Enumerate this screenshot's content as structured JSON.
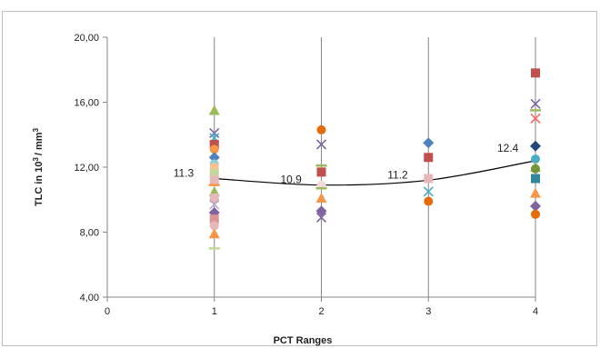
{
  "chart_data": {
    "type": "scatter",
    "title": "",
    "xlabel": "PCT Ranges",
    "ylabel_base": "TLC in 10",
    "ylabel_sup1": "3",
    "ylabel_mid": "/ mm",
    "ylabel_sup2": "3",
    "xlim": [
      0,
      4
    ],
    "ylim": [
      4,
      20
    ],
    "x_ticks": [
      "0",
      "1",
      "2",
      "3",
      "4"
    ],
    "y_ticks": [
      "4,00",
      "8,00",
      "12,00",
      "16,00",
      "20,00"
    ],
    "grid": "vertical",
    "legend": "none",
    "points": [
      {
        "x": 1,
        "y": 15.5,
        "marker": "triangle",
        "color": "#9bbb59"
      },
      {
        "x": 1,
        "y": 14.1,
        "marker": "x",
        "color": "#8064a2"
      },
      {
        "x": 1,
        "y": 13.8,
        "marker": "star",
        "color": "#4bacc6"
      },
      {
        "x": 1,
        "y": 13.4,
        "marker": "square",
        "color": "#c0504d"
      },
      {
        "x": 1,
        "y": 13.1,
        "marker": "circle",
        "color": "#f79646"
      },
      {
        "x": 1,
        "y": 12.6,
        "marker": "diamond",
        "color": "#4f81bd"
      },
      {
        "x": 1,
        "y": 12.2,
        "marker": "circle",
        "color": "#93cddd"
      },
      {
        "x": 1,
        "y": 12.0,
        "marker": "circle",
        "color": "#fac090"
      },
      {
        "x": 1,
        "y": 11.6,
        "marker": "square",
        "color": "#c3d69b"
      },
      {
        "x": 1,
        "y": 11.2,
        "marker": "square",
        "color": "#e6b9b8"
      },
      {
        "x": 1,
        "y": 10.9,
        "marker": "dash",
        "color": "#f79646"
      },
      {
        "x": 1,
        "y": 10.5,
        "marker": "triangle",
        "color": "#9bbb59"
      },
      {
        "x": 1,
        "y": 10.1,
        "marker": "square",
        "color": "#e6b9b8"
      },
      {
        "x": 1,
        "y": 9.7,
        "marker": "x",
        "color": "#b7a9d1"
      },
      {
        "x": 1,
        "y": 9.2,
        "marker": "diamond",
        "color": "#8064a2"
      },
      {
        "x": 1,
        "y": 8.8,
        "marker": "square",
        "color": "#d99694"
      },
      {
        "x": 1,
        "y": 8.4,
        "marker": "circle",
        "color": "#e6b9b8"
      },
      {
        "x": 1,
        "y": 7.9,
        "marker": "triangle",
        "color": "#f79646"
      },
      {
        "x": 1,
        "y": 7.0,
        "marker": "dash",
        "color": "#c3d69b"
      },
      {
        "x": 2,
        "y": 14.3,
        "marker": "circle",
        "color": "#e46c0a"
      },
      {
        "x": 2,
        "y": 13.4,
        "marker": "x",
        "color": "#8064a2"
      },
      {
        "x": 2,
        "y": 12.1,
        "marker": "dash",
        "color": "#9bbb59"
      },
      {
        "x": 2,
        "y": 11.7,
        "marker": "square",
        "color": "#c0504d"
      },
      {
        "x": 2,
        "y": 10.9,
        "marker": "circle",
        "color": "#f2dcdb"
      },
      {
        "x": 2,
        "y": 10.7,
        "marker": "dash",
        "color": "#9bbb59"
      },
      {
        "x": 2,
        "y": 10.1,
        "marker": "triangle",
        "color": "#f79646"
      },
      {
        "x": 2,
        "y": 9.3,
        "marker": "diamond",
        "color": "#8064a2"
      },
      {
        "x": 2,
        "y": 8.9,
        "marker": "x",
        "color": "#8064a2"
      },
      {
        "x": 3,
        "y": 13.5,
        "marker": "diamond",
        "color": "#4f81bd"
      },
      {
        "x": 3,
        "y": 12.6,
        "marker": "square",
        "color": "#c0504d"
      },
      {
        "x": 3,
        "y": 11.3,
        "marker": "square",
        "color": "#e6b9b8"
      },
      {
        "x": 3,
        "y": 10.5,
        "marker": "x",
        "color": "#4bacc6"
      },
      {
        "x": 3,
        "y": 9.9,
        "marker": "circle",
        "color": "#e46c0a"
      },
      {
        "x": 4,
        "y": 17.8,
        "marker": "square",
        "color": "#c0504d"
      },
      {
        "x": 4,
        "y": 15.9,
        "marker": "x",
        "color": "#8064a2"
      },
      {
        "x": 4,
        "y": 15.5,
        "marker": "dash",
        "color": "#9bbb59"
      },
      {
        "x": 4,
        "y": 15.0,
        "marker": "x",
        "color": "#ff6666"
      },
      {
        "x": 4,
        "y": 13.3,
        "marker": "diamond",
        "color": "#1f497d"
      },
      {
        "x": 4,
        "y": 12.5,
        "marker": "circle",
        "color": "#4bacc6"
      },
      {
        "x": 4,
        "y": 12.0,
        "marker": "triangle",
        "color": "#9bbb59"
      },
      {
        "x": 4,
        "y": 11.9,
        "marker": "circle",
        "color": "#77933c"
      },
      {
        "x": 4,
        "y": 11.3,
        "marker": "square",
        "color": "#31859c"
      },
      {
        "x": 4,
        "y": 10.4,
        "marker": "triangle",
        "color": "#f79646"
      },
      {
        "x": 4,
        "y": 9.6,
        "marker": "diamond",
        "color": "#8064a2"
      },
      {
        "x": 4,
        "y": 9.1,
        "marker": "circle",
        "color": "#e46c0a"
      }
    ],
    "trend": {
      "x": [
        1,
        2,
        3,
        4
      ],
      "y": [
        11.3,
        10.9,
        11.2,
        12.4
      ],
      "labels": [
        "11.3",
        "10.9",
        "11.2",
        "12.4"
      ],
      "color": "#000000"
    },
    "colors": {
      "axis": "#868686",
      "grid": "#868686",
      "frame": "#bfbfbf"
    }
  }
}
